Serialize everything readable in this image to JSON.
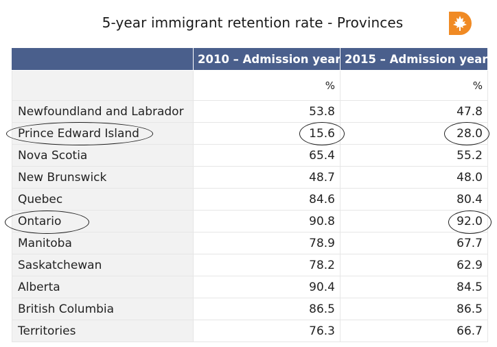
{
  "title": "5-year immigrant retention rate - Provinces",
  "logo_icon": "maple-leaf-d-logo-icon",
  "colors": {
    "header_bg": "#4a5f8c",
    "header_text": "#ffffff",
    "stub_bg": "#f2f2f2",
    "logo_orange": "#f08a24"
  },
  "table": {
    "headers": [
      "",
      "2010 – Admission year",
      "2015 – Admission year"
    ],
    "units": [
      "",
      "%",
      "%"
    ],
    "rows": [
      {
        "label": "Newfoundland and Labrador",
        "v2010": "53.8",
        "v2015": "47.8"
      },
      {
        "label": "Prince Edward Island",
        "v2010": "15.6",
        "v2015": "28.0"
      },
      {
        "label": "Nova Scotia",
        "v2010": "65.4",
        "v2015": "55.2"
      },
      {
        "label": "New Brunswick",
        "v2010": "48.7",
        "v2015": "48.0"
      },
      {
        "label": "Quebec",
        "v2010": "84.6",
        "v2015": "80.4"
      },
      {
        "label": "Ontario",
        "v2010": "90.8",
        "v2015": "92.0"
      },
      {
        "label": "Manitoba",
        "v2010": "78.9",
        "v2015": "67.7"
      },
      {
        "label": "Saskatchewan",
        "v2010": "78.2",
        "v2015": "62.9"
      },
      {
        "label": "Alberta",
        "v2010": "90.4",
        "v2015": "84.5"
      },
      {
        "label": "British Columbia",
        "v2010": "86.5",
        "v2015": "86.5"
      },
      {
        "label": "Territories",
        "v2010": "76.3",
        "v2015": "66.7"
      }
    ]
  },
  "highlights": [
    {
      "row": "Prince Edward Island",
      "cells": [
        "label",
        "v2010",
        "v2015"
      ]
    },
    {
      "row": "Ontario",
      "cells": [
        "label",
        "v2015"
      ]
    }
  ]
}
